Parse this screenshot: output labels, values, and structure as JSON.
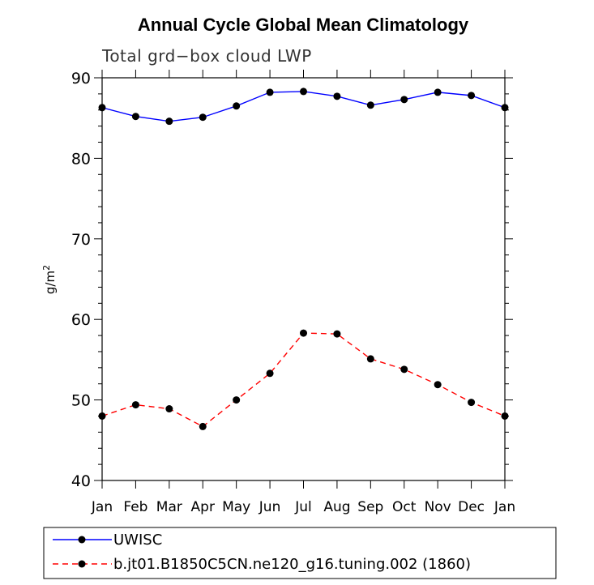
{
  "chart_data": {
    "type": "line",
    "title": "Annual Cycle Global Mean Climatology",
    "subtitle": "Total grd−box cloud LWP",
    "ylabel": "g/m",
    "ylabel_sup": "2",
    "xlabel": "",
    "ylim": [
      40,
      90
    ],
    "yticks": [
      40,
      50,
      60,
      70,
      80,
      90
    ],
    "yticks_minor_step": 2,
    "categories": [
      "Jan",
      "Feb",
      "Mar",
      "Apr",
      "May",
      "Jun",
      "Jul",
      "Aug",
      "Sep",
      "Oct",
      "Nov",
      "Dec",
      "Jan"
    ],
    "series": [
      {
        "name": "UWISC",
        "color": "#0000ff",
        "dashed": false,
        "values": [
          86.3,
          85.2,
          84.6,
          85.1,
          86.5,
          88.2,
          88.3,
          87.7,
          86.6,
          87.3,
          88.2,
          87.8,
          86.3
        ]
      },
      {
        "name": "b.jt01.B1850C5CN.ne120_g16.tuning.002 (1860)",
        "color": "#ff0000",
        "dashed": true,
        "values": [
          48.0,
          49.4,
          48.9,
          46.7,
          50.0,
          53.3,
          58.3,
          58.2,
          55.1,
          53.8,
          51.9,
          49.7,
          48.0
        ]
      }
    ]
  }
}
